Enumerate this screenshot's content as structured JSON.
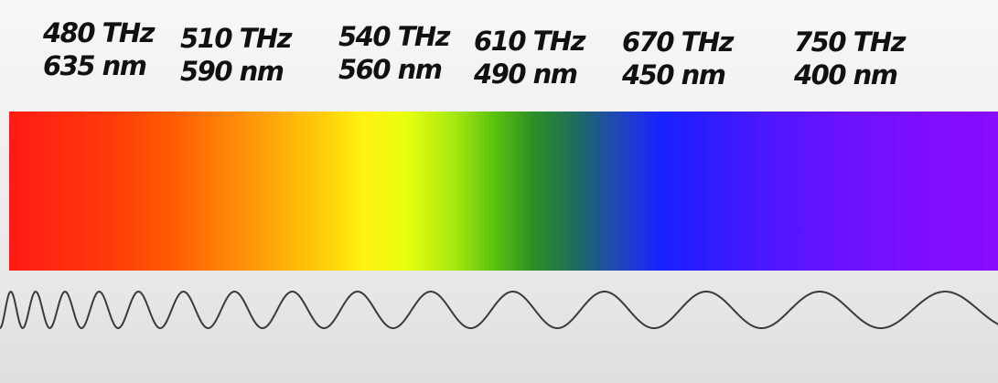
{
  "labels": [
    {
      "frequency": "480 THz",
      "wavelength": "635 nm"
    },
    {
      "frequency": "510 THz",
      "wavelength": "590 nm"
    },
    {
      "frequency": "540 THz",
      "wavelength": "560 nm"
    },
    {
      "frequency": "610 THz",
      "wavelength": "490 nm"
    },
    {
      "frequency": "670 THz",
      "wavelength": "450 nm"
    },
    {
      "frequency": "750 THz",
      "wavelength": "400 nm"
    }
  ],
  "colors": {
    "red": "#ff1a14",
    "orange": "#ff9a0a",
    "yellow": "#fff212",
    "green": "#5cc20e",
    "blue": "#1a22ff",
    "violet": "#8a0cff",
    "wave_stroke": "#3a3a3a"
  }
}
